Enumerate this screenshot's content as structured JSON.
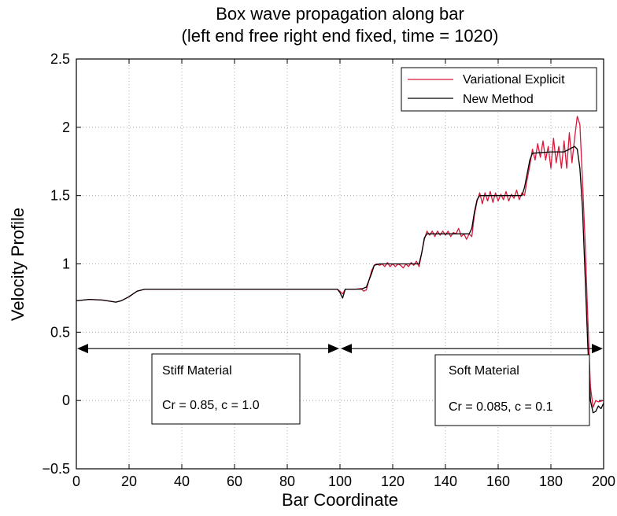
{
  "chart_data": {
    "type": "line",
    "title": "Box wave propagation along bar",
    "subtitle": "(left end free right end fixed, time = 1020)",
    "xlabel": "Bar Coordinate",
    "ylabel": "Velocity Profile",
    "xlim": [
      0,
      200
    ],
    "ylim": [
      -0.5,
      2.5
    ],
    "xticks": [
      0,
      20,
      40,
      60,
      80,
      100,
      120,
      140,
      160,
      180,
      200
    ],
    "yticks": [
      -0.5,
      0,
      0.5,
      1,
      1.5,
      2,
      2.5
    ],
    "xtick_labels": [
      "0",
      "20",
      "40",
      "60",
      "80",
      "100",
      "120",
      "140",
      "160",
      "180",
      "200"
    ],
    "ytick_labels": [
      "−0.5",
      "0",
      "0.5",
      "1",
      "1.5",
      "2",
      "2.5"
    ],
    "grid": true,
    "legend_position": "top-right",
    "series": [
      {
        "name": "Variational Explicit",
        "color": "#d7193c",
        "points": [
          [
            0,
            0.73
          ],
          [
            5,
            0.74
          ],
          [
            10,
            0.735
          ],
          [
            15,
            0.72
          ],
          [
            17,
            0.73
          ],
          [
            20,
            0.76
          ],
          [
            23,
            0.8
          ],
          [
            26,
            0.815
          ],
          [
            30,
            0.815
          ],
          [
            60,
            0.815
          ],
          [
            99,
            0.815
          ],
          [
            100,
            0.8
          ],
          [
            101,
            0.78
          ],
          [
            102,
            0.815
          ],
          [
            106,
            0.815
          ],
          [
            108,
            0.82
          ],
          [
            109,
            0.8
          ],
          [
            110,
            0.81
          ],
          [
            111,
            0.88
          ],
          [
            112,
            0.95
          ],
          [
            113,
            0.99
          ],
          [
            114,
            1.0
          ],
          [
            115,
            0.99
          ],
          [
            116,
            1.0
          ],
          [
            117,
            0.98
          ],
          [
            118,
            1.01
          ],
          [
            119,
            0.98
          ],
          [
            120,
            1.0
          ],
          [
            121,
            0.98
          ],
          [
            122,
            1.0
          ],
          [
            123,
            0.99
          ],
          [
            124,
            0.97
          ],
          [
            125,
            1.0
          ],
          [
            126,
            0.98
          ],
          [
            127,
            1.01
          ],
          [
            128,
            0.99
          ],
          [
            129,
            1.02
          ],
          [
            130,
            0.98
          ],
          [
            131,
            1.08
          ],
          [
            132,
            1.18
          ],
          [
            133,
            1.24
          ],
          [
            134,
            1.21
          ],
          [
            135,
            1.24
          ],
          [
            136,
            1.2
          ],
          [
            137,
            1.24
          ],
          [
            138,
            1.21
          ],
          [
            139,
            1.24
          ],
          [
            140,
            1.21
          ],
          [
            141,
            1.24
          ],
          [
            142,
            1.2
          ],
          [
            143,
            1.23
          ],
          [
            144,
            1.22
          ],
          [
            145,
            1.26
          ],
          [
            146,
            1.2
          ],
          [
            147,
            1.22
          ],
          [
            148,
            1.18
          ],
          [
            149,
            1.22
          ],
          [
            150,
            1.2
          ],
          [
            151,
            1.36
          ],
          [
            152,
            1.46
          ],
          [
            153,
            1.52
          ],
          [
            154,
            1.44
          ],
          [
            155,
            1.52
          ],
          [
            156,
            1.46
          ],
          [
            157,
            1.53
          ],
          [
            158,
            1.45
          ],
          [
            159,
            1.52
          ],
          [
            160,
            1.46
          ],
          [
            161,
            1.51
          ],
          [
            162,
            1.47
          ],
          [
            163,
            1.53
          ],
          [
            164,
            1.46
          ],
          [
            165,
            1.51
          ],
          [
            166,
            1.48
          ],
          [
            167,
            1.54
          ],
          [
            168,
            1.47
          ],
          [
            169,
            1.52
          ],
          [
            170,
            1.5
          ],
          [
            171,
            1.62
          ],
          [
            172,
            1.72
          ],
          [
            173,
            1.84
          ],
          [
            174,
            1.76
          ],
          [
            175,
            1.88
          ],
          [
            176,
            1.78
          ],
          [
            177,
            1.9
          ],
          [
            178,
            1.76
          ],
          [
            179,
            1.86
          ],
          [
            180,
            1.7
          ],
          [
            181,
            1.92
          ],
          [
            182,
            1.74
          ],
          [
            183,
            1.86
          ],
          [
            184,
            1.7
          ],
          [
            185,
            1.9
          ],
          [
            186,
            1.7
          ],
          [
            187,
            1.96
          ],
          [
            188,
            1.74
          ],
          [
            189,
            1.92
          ],
          [
            190,
            2.08
          ],
          [
            191,
            2.02
          ],
          [
            192,
            1.6
          ],
          [
            193,
            1.15
          ],
          [
            194,
            0.6
          ],
          [
            195,
            0.1
          ],
          [
            196,
            -0.05
          ],
          [
            197,
            0.0
          ],
          [
            198,
            -0.01
          ],
          [
            200,
            0.0
          ]
        ]
      },
      {
        "name": "New Method",
        "color": "#000000",
        "points": [
          [
            0,
            0.73
          ],
          [
            5,
            0.74
          ],
          [
            10,
            0.735
          ],
          [
            15,
            0.72
          ],
          [
            17,
            0.73
          ],
          [
            20,
            0.76
          ],
          [
            23,
            0.8
          ],
          [
            26,
            0.815
          ],
          [
            30,
            0.815
          ],
          [
            60,
            0.815
          ],
          [
            99,
            0.815
          ],
          [
            100,
            0.79
          ],
          [
            101,
            0.75
          ],
          [
            102,
            0.815
          ],
          [
            106,
            0.815
          ],
          [
            108,
            0.815
          ],
          [
            110,
            0.83
          ],
          [
            112,
            0.93
          ],
          [
            113,
            0.99
          ],
          [
            115,
            1.0
          ],
          [
            118,
            1.0
          ],
          [
            125,
            1.0
          ],
          [
            130,
            1.0
          ],
          [
            131,
            1.08
          ],
          [
            132,
            1.19
          ],
          [
            133,
            1.22
          ],
          [
            140,
            1.22
          ],
          [
            149,
            1.22
          ],
          [
            150,
            1.26
          ],
          [
            151,
            1.38
          ],
          [
            152,
            1.47
          ],
          [
            153,
            1.5
          ],
          [
            160,
            1.5
          ],
          [
            169,
            1.5
          ],
          [
            170,
            1.56
          ],
          [
            171,
            1.66
          ],
          [
            172,
            1.76
          ],
          [
            173,
            1.81
          ],
          [
            180,
            1.82
          ],
          [
            185,
            1.82
          ],
          [
            188,
            1.85
          ],
          [
            189,
            1.86
          ],
          [
            190,
            1.84
          ],
          [
            191,
            1.7
          ],
          [
            192,
            1.4
          ],
          [
            193,
            0.9
          ],
          [
            194,
            0.4
          ],
          [
            195,
            0.0
          ],
          [
            196,
            -0.09
          ],
          [
            197,
            -0.08
          ],
          [
            198,
            -0.04
          ],
          [
            199,
            -0.06
          ],
          [
            200,
            -0.02
          ]
        ]
      }
    ],
    "annotations": [
      {
        "kind": "double-arrow",
        "x": [
          0,
          100
        ],
        "y": 0.38
      },
      {
        "kind": "double-arrow",
        "x": [
          100,
          200
        ],
        "y": 0.38
      }
    ]
  },
  "boxes": {
    "stiff": {
      "title": "Stiff Material",
      "params": "Cr = 0.85,  c = 1.0"
    },
    "soft": {
      "title": "Soft Material",
      "params": "Cr = 0.085,  c = 0.1"
    }
  }
}
